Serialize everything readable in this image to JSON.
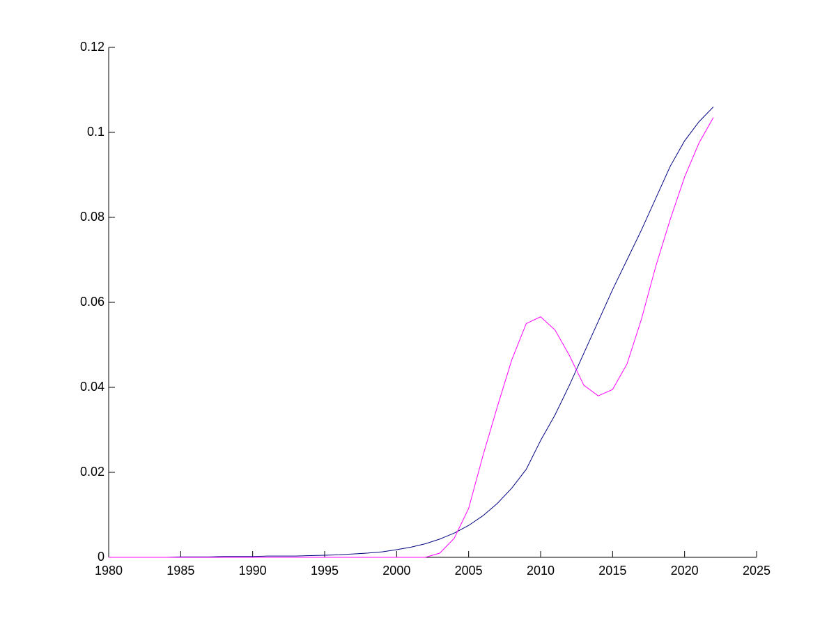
{
  "chart_data": {
    "type": "line",
    "x": [
      1980,
      1981,
      1982,
      1983,
      1984,
      1985,
      1986,
      1987,
      1988,
      1989,
      1990,
      1991,
      1992,
      1993,
      1994,
      1995,
      1996,
      1997,
      1998,
      1999,
      2000,
      2001,
      2002,
      2003,
      2004,
      2005,
      2006,
      2007,
      2008,
      2009,
      2010,
      2011,
      2012,
      2013,
      2014,
      2015,
      2016,
      2017,
      2018,
      2019,
      2020,
      2021,
      2022
    ],
    "series": [
      {
        "color": "#000080",
        "values": [
          0,
          0,
          0,
          0,
          0,
          0.0001,
          0.0001,
          0.0001,
          0.0002,
          0.0002,
          0.0002,
          0.0003,
          0.0003,
          0.0003,
          0.0004,
          0.0005,
          0.0006,
          0.0008,
          0.001,
          0.0013,
          0.0018,
          0.0024,
          0.0032,
          0.0043,
          0.0057,
          0.0075,
          0.0098,
          0.0127,
          0.0163,
          0.0207,
          0.0275,
          0.0335,
          0.0405,
          0.048,
          0.0555,
          0.063,
          0.07,
          0.077,
          0.0845,
          0.092,
          0.098,
          0.1025,
          0.106
        ]
      },
      {
        "color": "#ff00ff",
        "values": [
          0,
          0,
          0,
          0,
          0,
          0,
          0,
          0,
          0,
          0,
          0,
          0,
          0,
          0,
          0,
          0,
          0,
          0,
          0,
          0,
          0,
          0,
          0,
          0.001,
          0.0045,
          0.0115,
          0.024,
          0.0355,
          0.0465,
          0.055,
          0.0566,
          0.0535,
          0.0475,
          0.0405,
          0.038,
          0.0395,
          0.0455,
          0.056,
          0.0685,
          0.0795,
          0.0895,
          0.0975,
          0.1035
        ]
      }
    ],
    "xlim": [
      1980,
      2025
    ],
    "xticks": [
      1980,
      1985,
      1990,
      1995,
      2000,
      2005,
      2010,
      2015,
      2020,
      2025
    ],
    "ylim": [
      0,
      0.12
    ],
    "yticks": [
      0,
      0.02,
      0.04,
      0.06,
      0.08,
      0.1,
      0.12
    ]
  }
}
